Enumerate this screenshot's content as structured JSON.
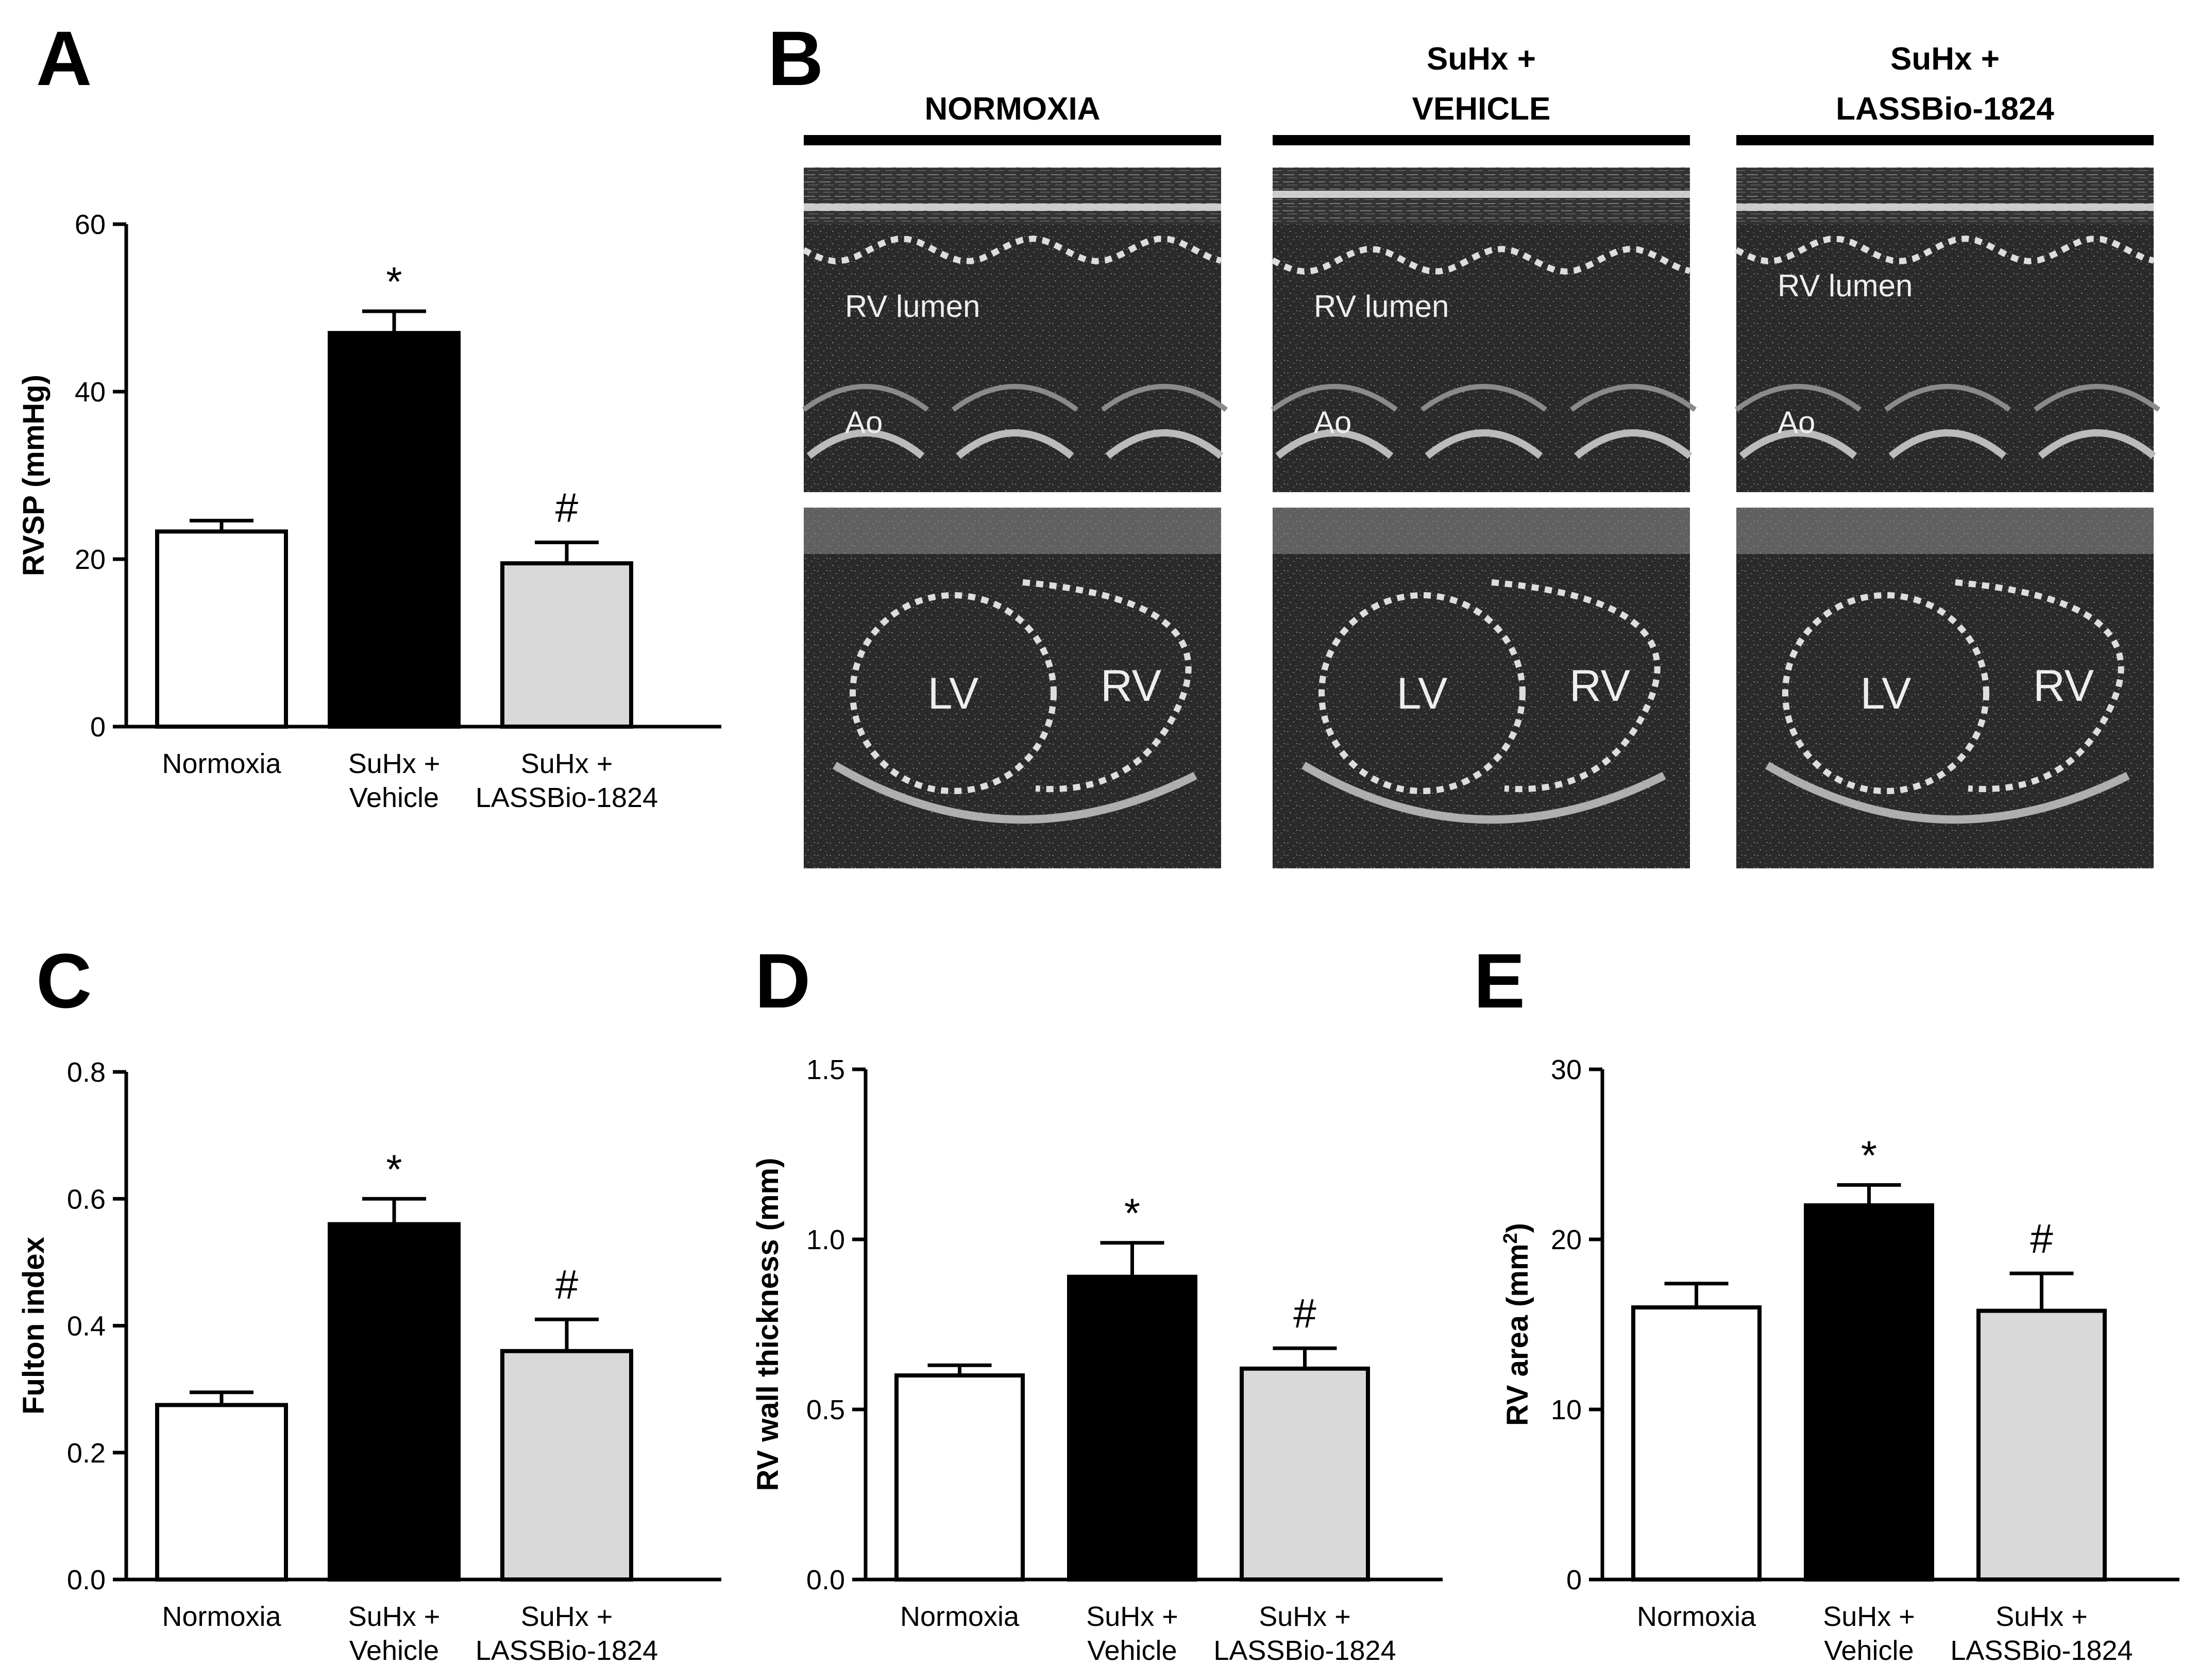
{
  "panels": {
    "A": "A",
    "B": "B",
    "C": "C",
    "D": "D",
    "E": "E"
  },
  "colors": {
    "normoxia": "#ffffff",
    "vehicle": "#000000",
    "lassbio": "#d9d9d9",
    "echo_bg": "#2e2e2e",
    "echo_bright": "#e6e6e6"
  },
  "echo": {
    "columns": [
      {
        "header_lines": [
          "NORMOXIA"
        ]
      },
      {
        "header_lines": [
          "SuHx +",
          "VEHICLE"
        ]
      },
      {
        "header_lines": [
          "SuHx +",
          "LASSBio-1824"
        ]
      }
    ],
    "mmode_labels": {
      "lumen": "RV lumen",
      "ao": "Ao"
    },
    "bmode_labels": {
      "lv": "LV",
      "rv": "RV"
    }
  },
  "chart_data": [
    {
      "panel": "A",
      "type": "bar",
      "categories": [
        [
          "Normoxia"
        ],
        [
          "SuHx +",
          "Vehicle"
        ],
        [
          "SuHx +",
          "LASSBio-1824"
        ]
      ],
      "values": [
        23.3,
        47.0,
        19.5
      ],
      "errors": [
        1.3,
        2.6,
        2.5
      ],
      "significance": [
        "",
        "*",
        "#"
      ],
      "ylabel": "RVSP (mmHg)",
      "ylim": [
        0,
        60
      ],
      "yticks": [
        "0",
        "20",
        "40",
        "60"
      ],
      "ytick_values": [
        0,
        20,
        40,
        60
      ]
    },
    {
      "panel": "C",
      "type": "bar",
      "categories": [
        [
          "Normoxia"
        ],
        [
          "SuHx +",
          "Vehicle"
        ],
        [
          "SuHx +",
          "LASSBio-1824"
        ]
      ],
      "values": [
        0.275,
        0.56,
        0.36
      ],
      "errors": [
        0.02,
        0.04,
        0.05
      ],
      "significance": [
        "",
        "*",
        "#"
      ],
      "ylabel": "Fulton index",
      "ylim": [
        0,
        0.8
      ],
      "yticks": [
        "0.0",
        "0.2",
        "0.4",
        "0.6",
        "0.8"
      ],
      "ytick_values": [
        0,
        0.2,
        0.4,
        0.6,
        0.8
      ]
    },
    {
      "panel": "D",
      "type": "bar",
      "categories": [
        [
          "Normoxia"
        ],
        [
          "SuHx +",
          "Vehicle"
        ],
        [
          "SuHx +",
          "LASSBio-1824"
        ]
      ],
      "values": [
        0.6,
        0.89,
        0.62
      ],
      "errors": [
        0.03,
        0.1,
        0.06
      ],
      "significance": [
        "",
        "*",
        "#"
      ],
      "ylabel": "RV wall thickness (mm)",
      "ylim": [
        0,
        1.5
      ],
      "yticks": [
        "0.0",
        "0.5",
        "1.0",
        "1.5"
      ],
      "ytick_values": [
        0,
        0.5,
        1.0,
        1.5
      ]
    },
    {
      "panel": "E",
      "type": "bar",
      "categories": [
        [
          "Normoxia"
        ],
        [
          "SuHx +",
          "Vehicle"
        ],
        [
          "SuHx +",
          "LASSBio-1824"
        ]
      ],
      "values": [
        16.0,
        22.0,
        15.8
      ],
      "errors": [
        1.4,
        1.2,
        2.2
      ],
      "significance": [
        "",
        "*",
        "#"
      ],
      "ylabel": "RV area (mm",
      "ylabel_sup": "2",
      "ylabel_end": ")",
      "ylim": [
        0,
        30
      ],
      "yticks": [
        "0",
        "10",
        "20",
        "30"
      ],
      "ytick_values": [
        0,
        10,
        20,
        30
      ]
    }
  ]
}
